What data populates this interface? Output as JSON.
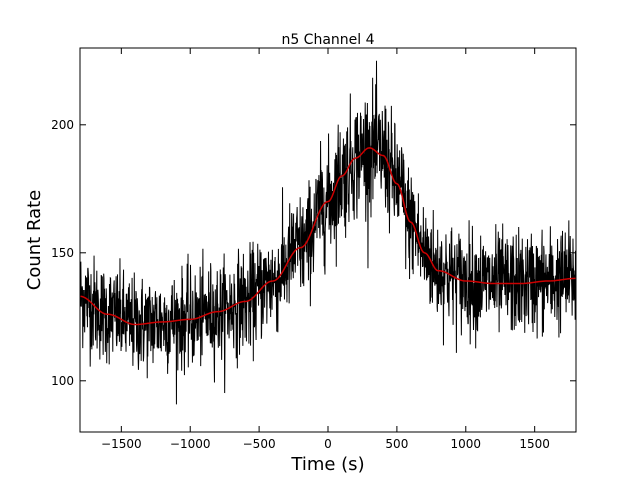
{
  "chart_data": {
    "type": "line",
    "title": "n5 Channel 4",
    "xlabel": "Time (s)",
    "ylabel": "Count Rate",
    "xlim": [
      -1800,
      1800
    ],
    "ylim": [
      80,
      230
    ],
    "xticks": [
      -1500,
      -1000,
      -500,
      0,
      500,
      1000,
      1500
    ],
    "xtick_labels": [
      "−1500",
      "−1000",
      "−500",
      "0",
      "500",
      "1000",
      "1500"
    ],
    "yticks": [
      100,
      150,
      200
    ],
    "ytick_labels": [
      "100",
      "150",
      "200"
    ],
    "grid": false,
    "legend": "none",
    "series": [
      {
        "style": "noisy-line",
        "color": "#000000",
        "x_range": [
          -1800,
          1800
        ],
        "sample_step": 2,
        "noise_sigma": 10,
        "peak_value": 225,
        "min_value": 88
      },
      {
        "style": "smooth-line",
        "color": "#cc0000",
        "x": [
          -1800,
          -1600,
          -1400,
          -1200,
          -1000,
          -800,
          -600,
          -400,
          -200,
          0,
          100,
          200,
          300,
          400,
          500,
          600,
          700,
          800,
          1000,
          1200,
          1400,
          1600,
          1800
        ],
        "y": [
          133,
          126,
          122,
          123,
          124,
          127,
          131,
          139,
          152,
          170,
          180,
          187,
          191,
          188,
          177,
          162,
          150,
          143,
          139,
          138,
          138,
          139,
          140
        ]
      }
    ]
  }
}
